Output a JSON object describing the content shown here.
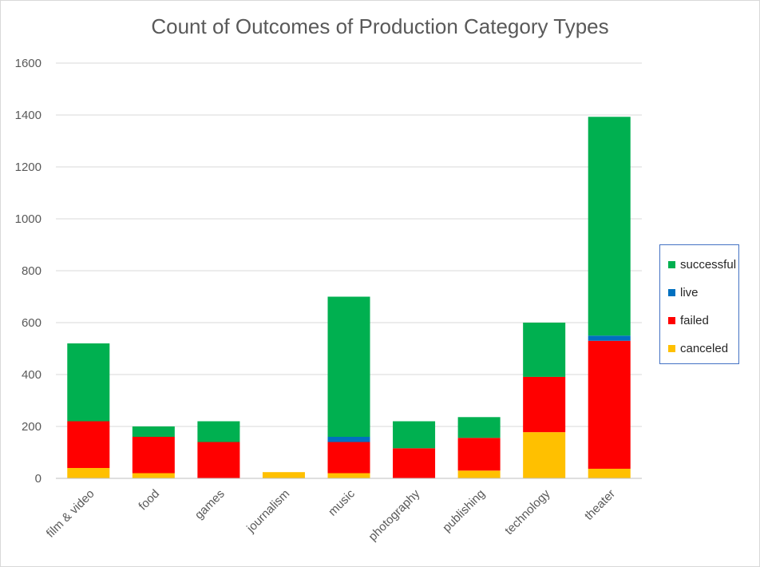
{
  "chart_data": {
    "type": "bar",
    "stacked": true,
    "title": "Count of Outcomes of Production Category Types",
    "categories": [
      "film & video",
      "food",
      "games",
      "journalism",
      "music",
      "photography",
      "publishing",
      "technology",
      "theater"
    ],
    "series": [
      {
        "name": "canceled",
        "color": "#ffc000",
        "values": [
          40,
          20,
          0,
          24,
          20,
          0,
          30,
          178,
          37
        ]
      },
      {
        "name": "failed",
        "color": "#ff0000",
        "values": [
          180,
          140,
          140,
          0,
          120,
          116,
          126,
          213,
          493
        ]
      },
      {
        "name": "live",
        "color": "#0070c0",
        "values": [
          0,
          0,
          0,
          0,
          20,
          0,
          0,
          0,
          20
        ]
      },
      {
        "name": "successful",
        "color": "#00b050",
        "values": [
          300,
          40,
          80,
          0,
          540,
          104,
          80,
          209,
          843
        ]
      }
    ],
    "legend_order": [
      "successful",
      "live",
      "failed",
      "canceled"
    ],
    "yticks": [
      "0",
      "200",
      "400",
      "600",
      "800",
      "1000",
      "1200",
      "1400",
      "1600"
    ],
    "ylim": [
      0,
      1600
    ],
    "grid": true,
    "legend_position": "right"
  }
}
